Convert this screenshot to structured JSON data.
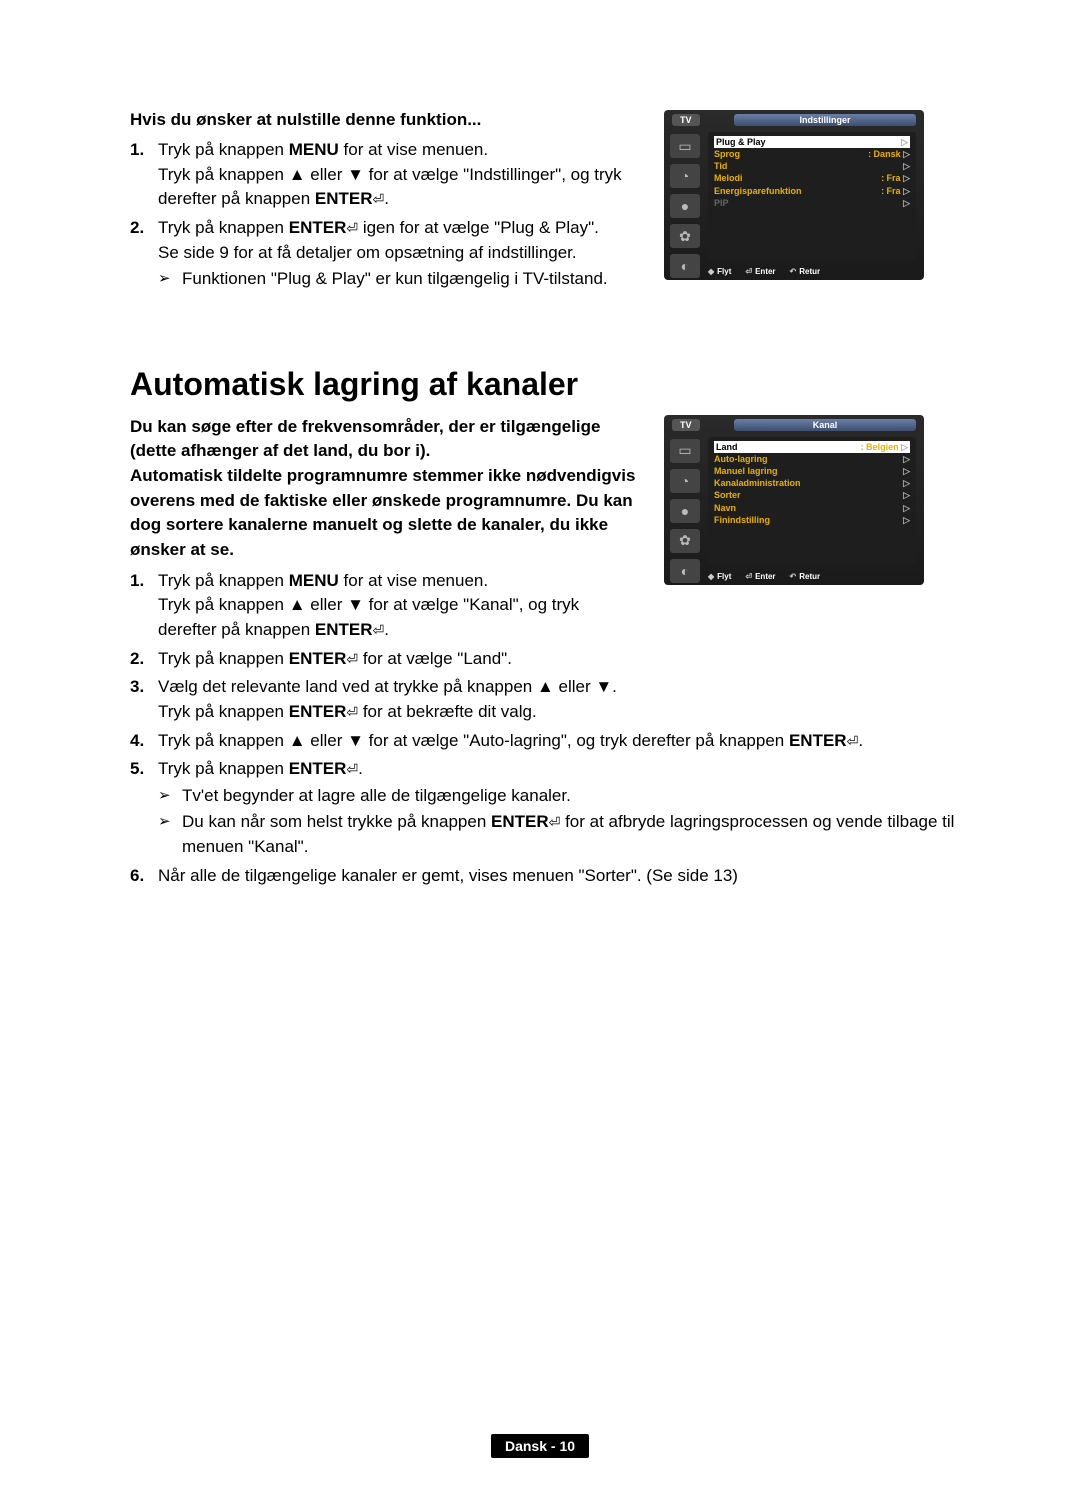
{
  "section1": {
    "title": "Hvis du ønsker at nulstille denne funktion...",
    "steps": [
      {
        "num": "1.",
        "parts": [
          "Tryk på knappen ",
          "MENU",
          " for at vise menuen.",
          "\nTryk på knappen ▲ eller ▼ for at vælge \"Indstillinger\", og tryk derefter på knappen ",
          "ENTER",
          "↵."
        ]
      },
      {
        "num": "2.",
        "parts": [
          "Tryk på knappen ",
          "ENTER",
          "↵ igen for at vælge \"Plug & Play\".",
          "\nSe side 9 for at få detaljer om opsætning af indstillinger."
        ]
      }
    ],
    "note": "Funktionen \"Plug & Play\" er kun tilgængelig i TV-tilstand."
  },
  "osd1": {
    "tab": "TV",
    "title": "Indstillinger",
    "rows": [
      {
        "label": "Plug & Play",
        "val": "",
        "sel": true
      },
      {
        "label": "Sprog",
        "val": ": Dansk"
      },
      {
        "label": "Tid",
        "val": ""
      },
      {
        "label": "Melodi",
        "val": ": Fra"
      },
      {
        "label": "Energisparefunktion",
        "val": ": Fra"
      },
      {
        "label": "PIP",
        "val": "",
        "dim": true
      }
    ],
    "footer": {
      "move": "Flyt",
      "enter": "Enter",
      "return": "Retur"
    }
  },
  "heading": "Automatisk lagring af kanaler",
  "intro": "Du kan søge efter de frekvensområder, der er tilgængelige (dette afhænger af det land, du bor i).\nAutomatisk tildelte programnumre stemmer ikke nødvendigvis overens med de faktiske eller ønskede programnumre. Du kan dog sortere kanalerne manuelt og slette de kanaler, du ikke ønsker at se.",
  "steps2": [
    {
      "num": "1.",
      "text": "Tryk på knappen MENU for at vise menuen.\nTryk på knappen ▲ eller ▼ for at vælge \"Kanal\", og tryk derefter på knappen ENTER↵."
    },
    {
      "num": "2.",
      "text": "Tryk på knappen ENTER↵ for at vælge \"Land\"."
    },
    {
      "num": "3.",
      "text": "Vælg det relevante land ved at trykke på knappen ▲ eller ▼.\nTryk på knappen ENTER↵ for at bekræfte dit valg."
    },
    {
      "num": "4.",
      "text": "Tryk på knappen ▲ eller ▼ for at vælge \"Auto-lagring\", og tryk derefter på knappen ENTER↵."
    },
    {
      "num": "5.",
      "text": "Tryk på knappen ENTER↵.",
      "notes": [
        "Tv'et begynder at lagre alle de tilgængelige kanaler.",
        "Du kan når som helst trykke på knappen ENTER↵ for at afbryde lagringsprocessen og vende tilbage til menuen \"Kanal\"."
      ]
    },
    {
      "num": "6.",
      "text": "Når alle de tilgængelige kanaler er gemt, vises menuen \"Sorter\". (Se side 13)"
    }
  ],
  "osd2": {
    "tab": "TV",
    "title": "Kanal",
    "rows": [
      {
        "label": "Land",
        "val": ": Belgien",
        "sel": true
      },
      {
        "label": "Auto-lagring",
        "val": ""
      },
      {
        "label": "Manuel lagring",
        "val": ""
      },
      {
        "label": "Kanaladministration",
        "val": ""
      },
      {
        "label": "Sorter",
        "val": ""
      },
      {
        "label": "Navn",
        "val": ""
      },
      {
        "label": "Finindstilling",
        "val": ""
      }
    ],
    "footer": {
      "move": "Flyt",
      "enter": "Enter",
      "return": "Retur"
    }
  },
  "footer_page": "Dansk - 10"
}
